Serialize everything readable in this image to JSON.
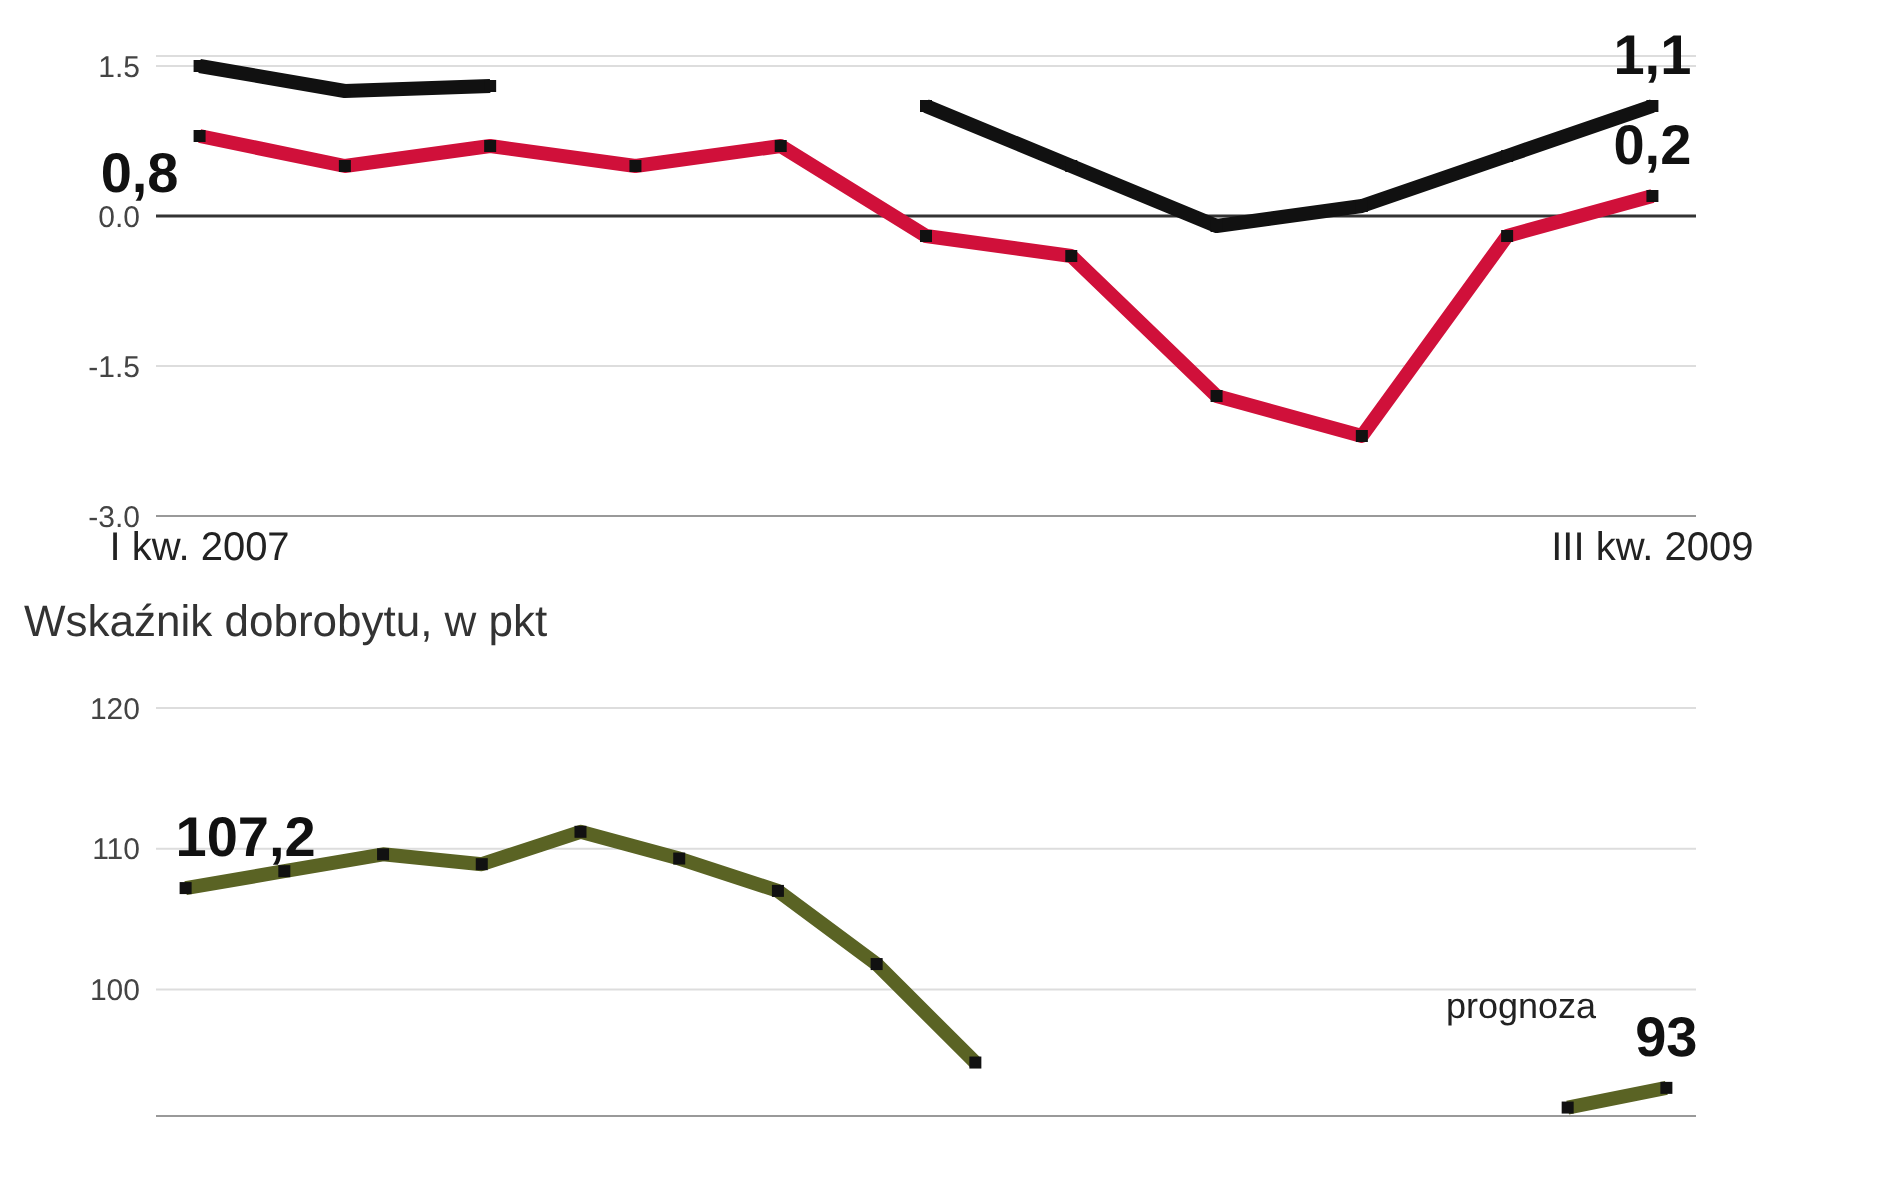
{
  "chart_data": [
    {
      "type": "line",
      "categories": [
        "I kw. 2007",
        null,
        null,
        null,
        null,
        null,
        null,
        null,
        null,
        null,
        "III kw. 2009"
      ],
      "ylim": [
        -3.0,
        1.6
      ],
      "yticks": [
        {
          "value": 1.5,
          "label": "1.5"
        },
        {
          "value": 0,
          "label": "0.0"
        },
        {
          "value": -1.5,
          "label": "-1.5"
        },
        {
          "value": -3,
          "label": "-3.0"
        }
      ],
      "grid": "y",
      "ref_lines": [
        {
          "axis": "y",
          "value": 0,
          "color": "#333333"
        }
      ],
      "marker": "square",
      "series": [
        {
          "color": "#111111",
          "values": [
            1.5,
            1.25,
            1.3,
            null,
            null,
            1.1,
            0.5,
            -0.1,
            0.1,
            0.6,
            1.1
          ],
          "value_labels": [
            null,
            null,
            null,
            null,
            null,
            null,
            null,
            null,
            null,
            null,
            "1,1"
          ]
        },
        {
          "color": "#d0103a",
          "values": [
            0.8,
            0.5,
            0.7,
            0.5,
            0.7,
            -0.2,
            -0.4,
            -1.8,
            -2.2,
            -0.2,
            0.2
          ],
          "value_labels": [
            "0,8",
            null,
            null,
            null,
            null,
            null,
            null,
            null,
            null,
            null,
            "0,2"
          ]
        }
      ]
    },
    {
      "type": "line",
      "title": "Wskaźnik dobrobytu, w pkt",
      "categories": [
        null,
        null,
        null,
        null,
        null,
        null,
        null,
        null,
        null,
        null,
        null,
        null,
        null,
        null,
        null,
        null
      ],
      "ylim": [
        91,
        120
      ],
      "yticks": [
        100,
        110,
        120
      ],
      "grid": "y",
      "tick_labels": "y",
      "marker": "square",
      "annotations": [
        "prognoza"
      ],
      "series": [
        {
          "color": "#5a6324",
          "values": [
            107.2,
            108.4,
            109.6,
            108.9,
            111.2,
            109.3,
            107.0,
            101.8,
            94.8,
            null,
            null,
            null,
            null,
            null,
            null,
            null
          ],
          "value_labels": [
            "107,2",
            null,
            null,
            null,
            null,
            null,
            null,
            null,
            null,
            null,
            null,
            null,
            null,
            null,
            null,
            null
          ]
        },
        {
          "color": "#5a6324",
          "values": [
            null,
            null,
            null,
            null,
            null,
            null,
            null,
            null,
            null,
            null,
            null,
            null,
            null,
            null,
            91.6,
            93
          ],
          "value_labels": [
            null,
            null,
            null,
            null,
            null,
            null,
            null,
            null,
            null,
            null,
            null,
            null,
            null,
            null,
            null,
            "93"
          ]
        }
      ]
    }
  ]
}
